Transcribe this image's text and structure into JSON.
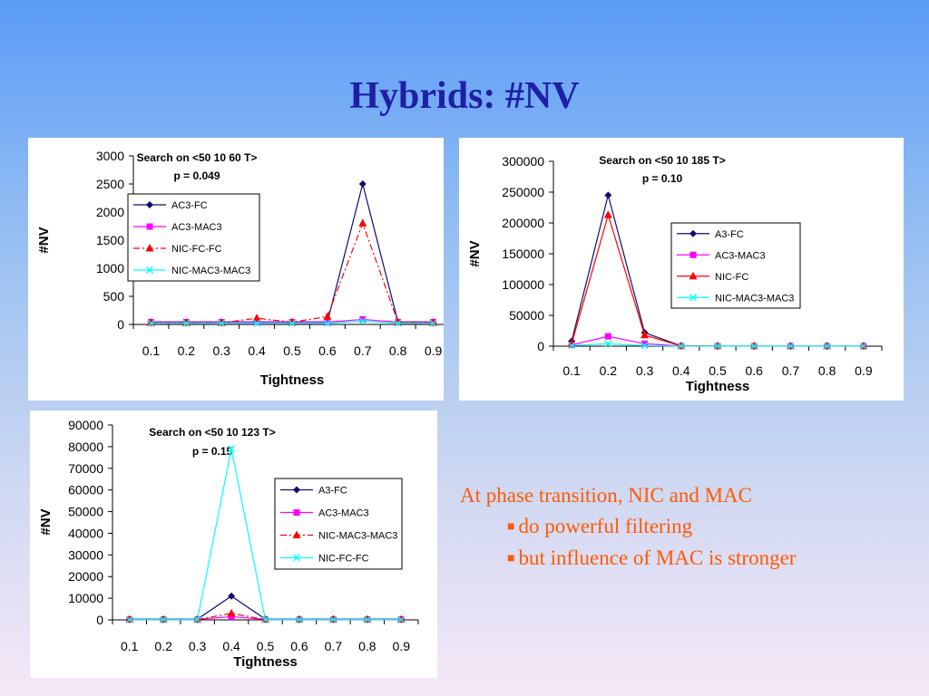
{
  "slide": {
    "title": "Hybrids: #NV",
    "note": {
      "heading": "At phase transition, NIC and MAC",
      "bullets": [
        "do powerful filtering",
        "but influence of MAC is stronger"
      ]
    }
  },
  "chart_data": [
    {
      "type": "line",
      "title": "Search on <50 10 60 T>",
      "subtitle": "p = 0.049",
      "xlabel": "Tightness",
      "ylabel": "#NV",
      "x": [
        0.1,
        0.2,
        0.3,
        0.4,
        0.5,
        0.6,
        0.7,
        0.8,
        0.9
      ],
      "x_tick_labels": [
        "0.1",
        "0.2",
        "0.3",
        "0.4",
        "0.5",
        "0.6",
        "0.7",
        "0.8",
        "0.9"
      ],
      "ylim": [
        0,
        3000
      ],
      "y_ticks": [
        0,
        500,
        1000,
        1500,
        2000,
        2500,
        3000
      ],
      "y_tick_labels": [
        "0",
        "500",
        "1000",
        "1500",
        "2000",
        "2500",
        "3000"
      ],
      "grid": false,
      "legend_position": "upper-middle",
      "series": [
        {
          "name": "AC3-FC",
          "color": "#0d0d73",
          "marker": "diamond",
          "dash": "solid",
          "values": [
            45,
            45,
            45,
            45,
            45,
            45,
            2500,
            45,
            45
          ]
        },
        {
          "name": "AC3-MAC3",
          "color": "#ff00ff",
          "marker": "square",
          "dash": "solid",
          "values": [
            40,
            40,
            40,
            40,
            40,
            40,
            90,
            40,
            40
          ]
        },
        {
          "name": "NIC-FC-FC",
          "color": "#ff0000",
          "marker": "triangle",
          "dash": "dashdot",
          "values": [
            30,
            30,
            30,
            110,
            40,
            140,
            1800,
            40,
            30
          ]
        },
        {
          "name": "NIC-MAC3-MAC3",
          "color": "#00ffff",
          "marker": "x",
          "dash": "solid",
          "values": [
            20,
            20,
            20,
            20,
            20,
            20,
            60,
            20,
            20
          ]
        }
      ]
    },
    {
      "type": "line",
      "title": "Search on <50 10 185 T>",
      "subtitle": "p = 0.10",
      "xlabel": "Tightness",
      "ylabel": "#NV",
      "x": [
        0.1,
        0.2,
        0.3,
        0.4,
        0.5,
        0.6,
        0.7,
        0.8,
        0.9
      ],
      "x_tick_labels": [
        "0.1",
        "0.2",
        "0.3",
        "0.4",
        "0.5",
        "0.6",
        "0.7",
        "0.8",
        "0.9"
      ],
      "ylim": [
        0,
        300000
      ],
      "y_ticks": [
        0,
        50000,
        100000,
        150000,
        200000,
        250000,
        300000
      ],
      "y_tick_labels": [
        "0",
        "50000",
        "100000",
        "150000",
        "200000",
        "250000",
        "300000"
      ],
      "grid": false,
      "legend_position": "right",
      "series": [
        {
          "name": "A3-FC",
          "color": "#0d0d73",
          "marker": "diamond",
          "dash": "solid",
          "values": [
            8000,
            245000,
            22000,
            500,
            100,
            100,
            100,
            100,
            100
          ]
        },
        {
          "name": "AC3-MAC3",
          "color": "#ff00ff",
          "marker": "square",
          "dash": "solid",
          "values": [
            2000,
            16000,
            4000,
            200,
            100,
            100,
            100,
            100,
            100
          ]
        },
        {
          "name": "NIC-FC",
          "color": "#ff0000",
          "marker": "triangle",
          "dash": "solid",
          "values": [
            4000,
            213000,
            18000,
            300,
            100,
            100,
            100,
            100,
            100
          ]
        },
        {
          "name": "NIC-MAC3-MAC3",
          "color": "#00ffff",
          "marker": "x",
          "dash": "solid",
          "values": [
            1000,
            4000,
            1000,
            100,
            100,
            100,
            100,
            100,
            100
          ]
        }
      ]
    },
    {
      "type": "line",
      "title": "Search on <50 10 123 T>",
      "subtitle": "p = 0.15",
      "xlabel": "Tightness",
      "ylabel": "#NV",
      "x": [
        0.1,
        0.2,
        0.3,
        0.4,
        0.5,
        0.6,
        0.7,
        0.8,
        0.9
      ],
      "x_tick_labels": [
        "0.1",
        "0.2",
        "0.3",
        "0.4",
        "0.5",
        "0.6",
        "0.7",
        "0.8",
        "0.9"
      ],
      "ylim": [
        0,
        90000
      ],
      "y_ticks": [
        0,
        10000,
        20000,
        30000,
        40000,
        50000,
        60000,
        70000,
        80000,
        90000
      ],
      "y_tick_labels": [
        "0",
        "10000",
        "20000",
        "30000",
        "40000",
        "50000",
        "60000",
        "70000",
        "80000",
        "90000"
      ],
      "grid": false,
      "legend_position": "right",
      "series": [
        {
          "name": "A3-FC",
          "color": "#0d0d73",
          "marker": "diamond",
          "dash": "solid",
          "values": [
            300,
            300,
            300,
            11000,
            300,
            300,
            300,
            300,
            300
          ]
        },
        {
          "name": "AC3-MAC3",
          "color": "#ff00ff",
          "marker": "square",
          "dash": "solid",
          "values": [
            200,
            200,
            200,
            1500,
            200,
            200,
            200,
            200,
            200
          ]
        },
        {
          "name": "NIC-MAC3-MAC3",
          "color": "#ff0000",
          "marker": "triangle",
          "dash": "dashdot",
          "values": [
            150,
            150,
            150,
            3000,
            150,
            150,
            150,
            150,
            150
          ]
        },
        {
          "name": "NIC-FC-FC",
          "color": "#00ffff",
          "marker": "x",
          "dash": "solid",
          "values": [
            100,
            100,
            100,
            79000,
            100,
            100,
            100,
            100,
            100
          ]
        }
      ]
    }
  ]
}
